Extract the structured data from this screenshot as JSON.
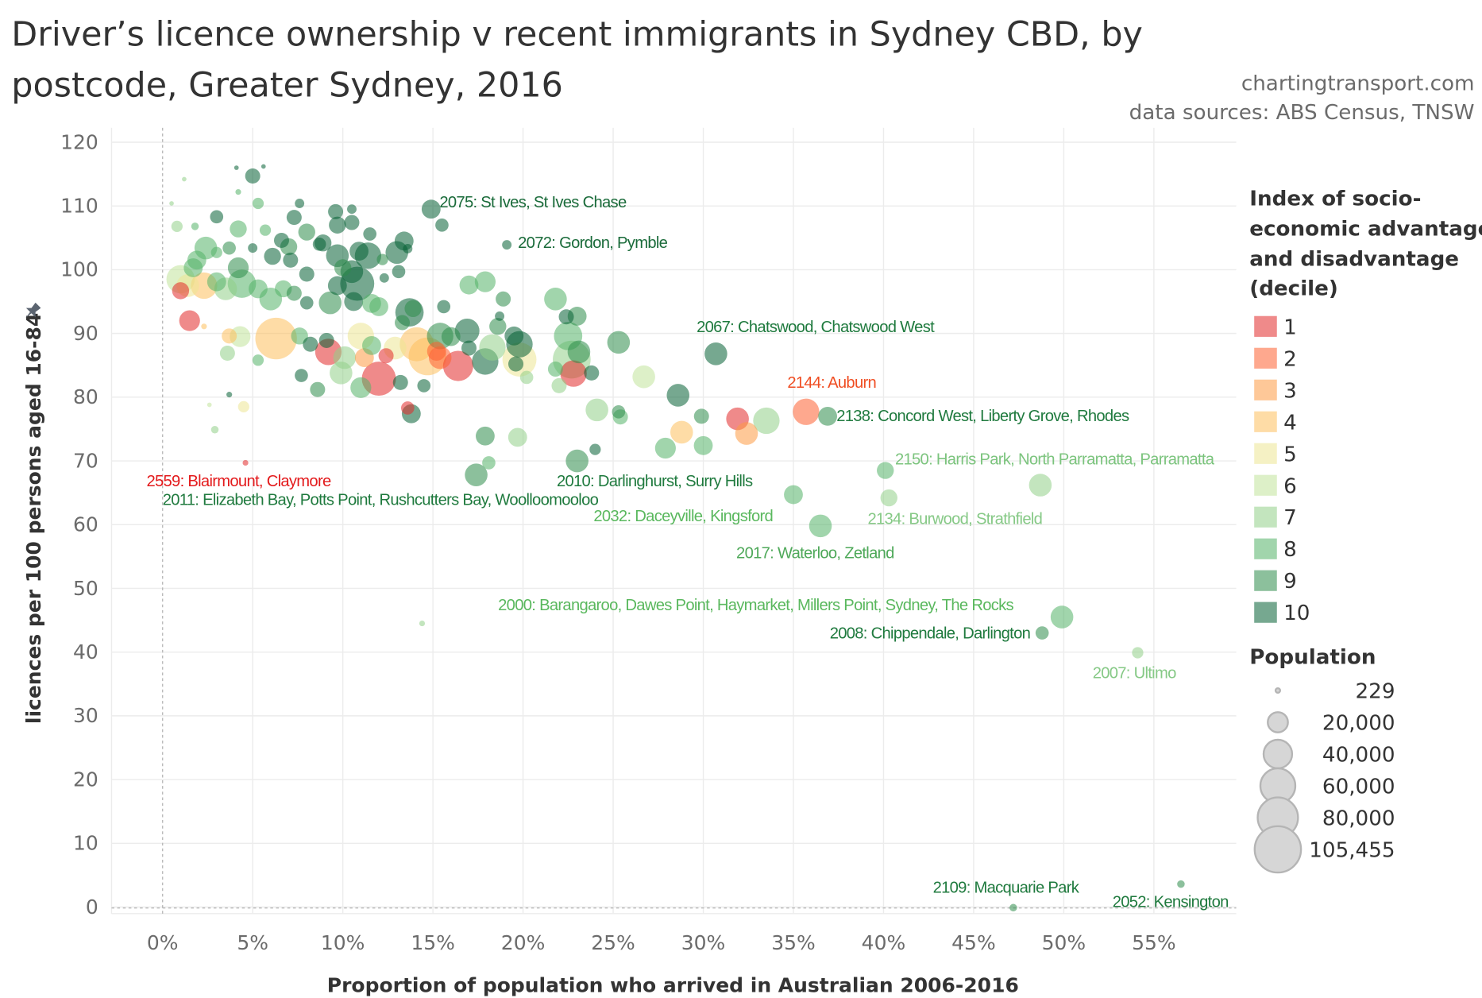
{
  "header": {
    "title_line1": "Driver’s licence ownership v recent immigrants in Sydney CBD, by",
    "title_line2": "postcode, Greater Sydney, 2016",
    "credit": "chartingtransport.com",
    "sources": "data sources: ABS Census, TNSW"
  },
  "legend": {
    "color_title": [
      "Index of socio-",
      "economic advantage",
      "and disadvantage",
      "(decile)"
    ],
    "deciles": [
      "1",
      "2",
      "3",
      "4",
      "5",
      "6",
      "7",
      "8",
      "9",
      "10"
    ],
    "decile_colors": [
      "#e22a2a",
      "#fd6132",
      "#fd9b44",
      "#fdbf5d",
      "#ede694",
      "#c1e49b",
      "#92d089",
      "#54b368",
      "#2e8c4b",
      "#066135"
    ],
    "size_title": "Population",
    "sizes": [
      {
        "label": "229",
        "value": 229
      },
      {
        "label": "20,000",
        "value": 20000
      },
      {
        "label": "40,000",
        "value": 40000
      },
      {
        "label": "60,000",
        "value": 60000
      },
      {
        "label": "80,000",
        "value": 80000
      },
      {
        "label": "105,455",
        "value": 105455
      }
    ]
  },
  "chart_data": {
    "type": "scatter",
    "title": "Driver’s licence ownership v recent immigrants in Sydney CBD, by postcode, Greater Sydney, 2016",
    "xlabel": "Proportion of population who arrived in Australian 2006-2016",
    "ylabel": "licences per 100 persons aged 16-84",
    "xlim": [
      -3,
      59.5
    ],
    "ylim": [
      -2,
      122
    ],
    "x_ticks": [
      "0%",
      "5%",
      "10%",
      "15%",
      "20%",
      "25%",
      "30%",
      "35%",
      "40%",
      "45%",
      "50%",
      "55%"
    ],
    "x_tick_values": [
      0,
      5,
      10,
      15,
      20,
      25,
      30,
      35,
      40,
      45,
      50,
      55
    ],
    "y_ticks": [
      "0",
      "10",
      "20",
      "30",
      "40",
      "50",
      "60",
      "70",
      "80",
      "90",
      "100",
      "110",
      "120"
    ],
    "y_tick_values": [
      0,
      10,
      20,
      30,
      40,
      50,
      60,
      70,
      80,
      90,
      100,
      110,
      120
    ],
    "grid": true,
    "legend_position": "right",
    "point_fields": [
      "pct_arrived_2006_2016",
      "licences_per_100",
      "seifa_decile",
      "population"
    ],
    "points": [
      [
        4.1,
        116.0,
        10,
        700
      ],
      [
        5.6,
        116.2,
        10,
        700
      ],
      [
        5.0,
        114.7,
        10,
        11200
      ],
      [
        1.2,
        114.2,
        7,
        700
      ],
      [
        4.2,
        112.2,
        8,
        1600
      ],
      [
        5.3,
        110.4,
        8,
        6300
      ],
      [
        0.5,
        110.4,
        7,
        700
      ],
      [
        7.6,
        110.4,
        10,
        4400
      ],
      [
        3.0,
        108.3,
        10,
        8600
      ],
      [
        7.3,
        108.2,
        10,
        11200
      ],
      [
        9.6,
        109.1,
        10,
        11200
      ],
      [
        10.5,
        109.5,
        10,
        4400
      ],
      [
        14.9,
        109.5,
        10,
        17600
      ],
      [
        15.5,
        107.0,
        10,
        8600
      ],
      [
        0.8,
        106.8,
        7,
        6300
      ],
      [
        1.8,
        106.8,
        8,
        2800
      ],
      [
        4.2,
        106.4,
        8,
        14200
      ],
      [
        5.7,
        106.2,
        8,
        6300
      ],
      [
        10.5,
        107.4,
        10,
        11200
      ],
      [
        9.7,
        107.0,
        10,
        14200
      ],
      [
        6.6,
        104.6,
        10,
        11200
      ],
      [
        8.0,
        105.9,
        9,
        14200
      ],
      [
        8.9,
        104.2,
        10,
        14200
      ],
      [
        2.4,
        103.4,
        8,
        25300
      ],
      [
        3.7,
        103.4,
        9,
        8600
      ],
      [
        1.9,
        101.5,
        8,
        17600
      ],
      [
        3.0,
        102.7,
        8,
        6300
      ],
      [
        1.7,
        100.3,
        8,
        17600
      ],
      [
        4.2,
        100.3,
        9,
        21300
      ],
      [
        5.0,
        103.4,
        10,
        4400
      ],
      [
        6.1,
        102.1,
        10,
        14200
      ],
      [
        7.0,
        103.6,
        9,
        14200
      ],
      [
        7.1,
        101.5,
        10,
        11200
      ],
      [
        8.0,
        99.3,
        10,
        11200
      ],
      [
        8.7,
        104.0,
        10,
        8600
      ],
      [
        9.7,
        102.2,
        10,
        25300
      ],
      [
        10.0,
        100.3,
        9,
        14200
      ],
      [
        10.9,
        102.9,
        10,
        17600
      ],
      [
        11.5,
        105.6,
        10,
        8600
      ],
      [
        11.4,
        102.2,
        10,
        34400
      ],
      [
        12.2,
        101.6,
        9,
        6300
      ],
      [
        13.0,
        102.7,
        10,
        25300
      ],
      [
        13.4,
        104.5,
        10,
        17600
      ],
      [
        13.6,
        103.3,
        10,
        4400
      ],
      [
        10.8,
        97.8,
        10,
        57000
      ],
      [
        10.5,
        99.7,
        10,
        25300
      ],
      [
        9.7,
        97.5,
        10,
        17600
      ],
      [
        12.3,
        98.7,
        10,
        4400
      ],
      [
        13.1,
        99.7,
        10,
        8600
      ],
      [
        1.0,
        98.5,
        6,
        39500
      ],
      [
        1.4,
        97.5,
        5,
        25300
      ],
      [
        2.3,
        97.5,
        4,
        34400
      ],
      [
        3.0,
        98.1,
        8,
        17600
      ],
      [
        3.5,
        97.0,
        7,
        25300
      ],
      [
        4.4,
        97.8,
        8,
        39500
      ],
      [
        5.3,
        97.0,
        8,
        17600
      ],
      [
        6.0,
        95.4,
        8,
        25300
      ],
      [
        6.7,
        97.0,
        8,
        14200
      ],
      [
        7.3,
        96.3,
        9,
        11200
      ],
      [
        8.0,
        94.8,
        10,
        8600
      ],
      [
        9.3,
        94.8,
        9,
        25300
      ],
      [
        10.6,
        95.0,
        10,
        17600
      ],
      [
        11.6,
        94.7,
        8,
        17600
      ],
      [
        12.0,
        94.2,
        8,
        17600
      ],
      [
        1.0,
        96.7,
        1,
        14200
      ],
      [
        1.5,
        92.0,
        1,
        21300
      ],
      [
        2.3,
        91.1,
        4,
        1600
      ],
      [
        3.7,
        89.6,
        4,
        11200
      ],
      [
        4.3,
        89.5,
        6,
        21300
      ],
      [
        6.3,
        89.2,
        4,
        85000
      ],
      [
        3.6,
        86.9,
        7,
        11200
      ],
      [
        5.3,
        85.8,
        8,
        6300
      ],
      [
        7.6,
        89.6,
        8,
        14200
      ],
      [
        8.2,
        88.3,
        10,
        11200
      ],
      [
        9.2,
        87.1,
        1,
        34400
      ],
      [
        9.1,
        88.9,
        10,
        11200
      ],
      [
        10.1,
        86.2,
        7,
        25300
      ],
      [
        11.0,
        89.6,
        5,
        34400
      ],
      [
        11.2,
        86.2,
        3,
        17600
      ],
      [
        11.6,
        88.1,
        8,
        17600
      ],
      [
        12.0,
        82.9,
        1,
        57000
      ],
      [
        12.4,
        86.5,
        1,
        11200
      ],
      [
        12.9,
        87.7,
        5,
        25300
      ],
      [
        13.7,
        93.3,
        10,
        39500
      ],
      [
        13.9,
        93.9,
        9,
        14200
      ],
      [
        13.3,
        91.7,
        9,
        11200
      ],
      [
        14.1,
        88.3,
        4,
        57000
      ],
      [
        14.7,
        86.4,
        4,
        70300
      ],
      [
        15.4,
        89.6,
        9,
        34400
      ],
      [
        16.0,
        89.5,
        9,
        17600
      ],
      [
        16.9,
        90.4,
        10,
        29700
      ],
      [
        17.0,
        87.7,
        10,
        11200
      ],
      [
        16.4,
        84.9,
        1,
        45000
      ],
      [
        15.4,
        86.2,
        2,
        25300
      ],
      [
        15.2,
        87.2,
        2,
        17600
      ],
      [
        17.9,
        85.6,
        10,
        34400
      ],
      [
        18.6,
        91.1,
        9,
        14200
      ],
      [
        18.7,
        92.7,
        10,
        4400
      ],
      [
        17.0,
        97.6,
        8,
        17600
      ],
      [
        17.9,
        98.1,
        8,
        21300
      ],
      [
        18.9,
        95.4,
        9,
        11200
      ],
      [
        15.6,
        94.2,
        10,
        8600
      ],
      [
        19.5,
        89.6,
        10,
        17600
      ],
      [
        19.8,
        85.9,
        5,
        57000
      ],
      [
        19.8,
        88.3,
        10,
        34400
      ],
      [
        19.6,
        85.2,
        10,
        11200
      ],
      [
        20.2,
        83.1,
        7,
        8600
      ],
      [
        18.3,
        87.8,
        7,
        34400
      ],
      [
        21.8,
        95.4,
        8,
        25300
      ],
      [
        22.4,
        92.6,
        10,
        11200
      ],
      [
        23.0,
        92.7,
        9,
        17600
      ],
      [
        22.5,
        89.6,
        8,
        39500
      ],
      [
        22.7,
        85.9,
        7,
        70300
      ],
      [
        22.8,
        83.7,
        1,
        34400
      ],
      [
        23.1,
        87.1,
        9,
        25300
      ],
      [
        23.8,
        83.8,
        10,
        11200
      ],
      [
        22.0,
        81.8,
        7,
        11200
      ],
      [
        21.8,
        84.4,
        8,
        11200
      ],
      [
        7.7,
        83.4,
        10,
        8600
      ],
      [
        8.6,
        81.2,
        9,
        11200
      ],
      [
        9.9,
        83.8,
        7,
        25300
      ],
      [
        11.0,
        81.5,
        8,
        21300
      ],
      [
        13.6,
        78.3,
        1,
        8600
      ],
      [
        13.8,
        77.4,
        10,
        17600
      ],
      [
        13.2,
        82.3,
        10,
        11200
      ],
      [
        14.5,
        81.8,
        10,
        8600
      ],
      [
        3.7,
        80.4,
        10,
        1600
      ],
      [
        2.6,
        78.8,
        6,
        700
      ],
      [
        4.5,
        78.5,
        5,
        6300
      ],
      [
        2.9,
        74.9,
        7,
        2800
      ],
      [
        4.6,
        69.7,
        1,
        1600
      ],
      [
        25.3,
        88.6,
        9,
        25300
      ],
      [
        26.7,
        83.2,
        6,
        25300
      ],
      [
        28.6,
        80.3,
        10,
        25300
      ],
      [
        24.1,
        78.0,
        7,
        25300
      ],
      [
        25.3,
        77.7,
        9,
        8600
      ],
      [
        25.4,
        76.9,
        8,
        11200
      ],
      [
        29.9,
        77.0,
        9,
        11200
      ],
      [
        30.7,
        86.8,
        10,
        25300
      ],
      [
        31.9,
        76.6,
        1,
        25300
      ],
      [
        33.5,
        76.3,
        7,
        34400
      ],
      [
        28.8,
        74.5,
        4,
        25300
      ],
      [
        32.4,
        74.3,
        3,
        25300
      ],
      [
        30.0,
        72.4,
        8,
        17600
      ],
      [
        27.9,
        72.0,
        8,
        21300
      ],
      [
        24.0,
        71.8,
        10,
        6300
      ],
      [
        23.0,
        70.0,
        9,
        25300
      ],
      [
        19.7,
        73.7,
        7,
        17600
      ],
      [
        17.9,
        73.9,
        9,
        17600
      ],
      [
        18.1,
        69.7,
        8,
        8600
      ],
      [
        17.4,
        67.8,
        9,
        25300
      ],
      [
        19.1,
        103.9,
        10,
        4400
      ],
      [
        35.7,
        77.7,
        2,
        34400
      ],
      [
        36.9,
        77.0,
        9,
        17600
      ],
      [
        40.1,
        68.5,
        8,
        14200
      ],
      [
        40.3,
        64.2,
        7,
        14200
      ],
      [
        48.7,
        66.2,
        7,
        25300
      ],
      [
        35.0,
        64.7,
        8,
        17600
      ],
      [
        36.5,
        59.8,
        8,
        25300
      ],
      [
        14.4,
        44.5,
        7,
        1600
      ],
      [
        49.9,
        45.5,
        8,
        25300
      ],
      [
        48.8,
        43.0,
        9,
        8600
      ],
      [
        54.1,
        39.9,
        7,
        6300
      ],
      [
        56.5,
        3.6,
        9,
        2800
      ],
      [
        47.2,
        -0.1,
        9,
        2800
      ]
    ],
    "annotations": [
      {
        "text": "2075: St Ives, St Ives Chase",
        "color": "#1a6b3a"
      },
      {
        "text": "2072: Gordon, Pymble",
        "color": "#1a6b3a"
      },
      {
        "text": "2067: Chatswood, Chatswood West",
        "color": "#1f7a3e"
      },
      {
        "text": "2144: Auburn",
        "color": "#f04e23"
      },
      {
        "text": "2138: Concord West, Liberty Grove, Rhodes",
        "color": "#1f7a3e"
      },
      {
        "text": "2150: Harris Park, North Parramatta, Parramatta",
        "color": "#7cc47e"
      },
      {
        "text": "2559: Blairmount, Claymore",
        "color": "#e31a1c"
      },
      {
        "text": "2011: Elizabeth Bay, Potts Point, Rushcutters Bay, Woolloomooloo",
        "color": "#1f7a3e"
      },
      {
        "text": "2010: Darlinghurst, Surry Hills",
        "color": "#1f7a3e"
      },
      {
        "text": "2032: Daceyville, Kingsford",
        "color": "#5ab85e"
      },
      {
        "text": "2134: Burwood, Strathfield",
        "color": "#86c986"
      },
      {
        "text": "2017: Waterloo, Zetland",
        "color": "#4fa95a"
      },
      {
        "text": "2000: Barangaroo, Dawes Point, Haymarket, Millers Point, Sydney, The Rocks",
        "color": "#5ab85e"
      },
      {
        "text": "2008: Chippendale, Darlington",
        "color": "#1f7a3e"
      },
      {
        "text": "2007: Ultimo",
        "color": "#86c986"
      },
      {
        "text": "2109: Macquarie Park",
        "color": "#1f7a3e"
      },
      {
        "text": "2052: Kensington",
        "color": "#1f7a3e"
      }
    ]
  }
}
